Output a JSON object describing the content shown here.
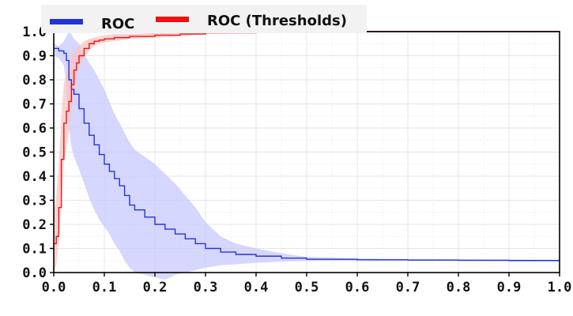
{
  "chart_data": {
    "type": "line",
    "title": "",
    "xlabel": "",
    "ylabel": "",
    "xlim": [
      0.0,
      1.0
    ],
    "ylim": [
      0.0,
      1.0
    ],
    "grid": true,
    "legend_position": "top-left",
    "x_tick_labels": [
      "0.0",
      "0.1",
      "0.2",
      "0.3",
      "0.4",
      "0.5",
      "0.6",
      "0.7",
      "0.8",
      "0.9",
      "1.0"
    ],
    "y_tick_labels": [
      "0.0",
      "0.1",
      "0.2",
      "0.3",
      "0.4",
      "0.5",
      "0.6",
      "0.7",
      "0.8",
      "0.9",
      "1.0"
    ],
    "series": [
      {
        "name": "ROC",
        "color": "#2233dd",
        "band_color": "#c8caff",
        "x": [
          0.0,
          0.01,
          0.02,
          0.025,
          0.03,
          0.035,
          0.04,
          0.05,
          0.06,
          0.07,
          0.08,
          0.09,
          0.1,
          0.11,
          0.12,
          0.13,
          0.14,
          0.15,
          0.16,
          0.18,
          0.2,
          0.22,
          0.24,
          0.26,
          0.28,
          0.3,
          0.33,
          0.36,
          0.4,
          0.45,
          0.5,
          0.6,
          0.7,
          0.8,
          0.9,
          1.0
        ],
        "y": [
          0.93,
          0.92,
          0.91,
          0.88,
          0.8,
          0.76,
          0.74,
          0.68,
          0.62,
          0.57,
          0.53,
          0.49,
          0.45,
          0.42,
          0.39,
          0.36,
          0.32,
          0.28,
          0.26,
          0.23,
          0.2,
          0.18,
          0.16,
          0.14,
          0.12,
          0.1,
          0.085,
          0.075,
          0.068,
          0.06,
          0.055,
          0.053,
          0.052,
          0.051,
          0.05,
          0.05
        ],
        "upper": [
          0.95,
          0.94,
          0.96,
          0.98,
          1.0,
          0.99,
          0.97,
          0.95,
          0.91,
          0.87,
          0.84,
          0.8,
          0.76,
          0.71,
          0.66,
          0.62,
          0.58,
          0.54,
          0.51,
          0.48,
          0.45,
          0.41,
          0.37,
          0.32,
          0.27,
          0.21,
          0.15,
          0.12,
          0.1,
          0.08,
          0.065,
          0.058,
          0.056,
          0.055,
          0.054,
          0.053
        ],
        "lower": [
          0.9,
          0.89,
          0.86,
          0.78,
          0.6,
          0.52,
          0.48,
          0.43,
          0.37,
          0.31,
          0.26,
          0.22,
          0.19,
          0.16,
          0.12,
          0.09,
          0.05,
          0.02,
          0.0,
          -0.01,
          -0.02,
          -0.03,
          -0.01,
          0.0,
          0.01,
          0.02,
          0.03,
          0.035,
          0.04,
          0.045,
          0.048,
          0.048,
          0.048,
          0.047,
          0.046,
          0.046
        ]
      },
      {
        "name": "ROC (Thresholds)",
        "color": "#ee1111",
        "band_color": "#f8c4c4",
        "x": [
          0.0,
          0.005,
          0.01,
          0.015,
          0.02,
          0.025,
          0.03,
          0.035,
          0.04,
          0.045,
          0.05,
          0.06,
          0.07,
          0.08,
          0.09,
          0.1,
          0.12,
          0.15,
          0.2,
          0.25,
          0.3,
          0.4,
          0.5,
          0.6,
          0.8,
          1.0
        ],
        "y": [
          0.12,
          0.15,
          0.27,
          0.47,
          0.62,
          0.67,
          0.71,
          0.78,
          0.84,
          0.87,
          0.9,
          0.93,
          0.95,
          0.96,
          0.965,
          0.97,
          0.975,
          0.98,
          0.985,
          0.99,
          0.995,
          0.998,
          0.999,
          1.0,
          1.0,
          1.0
        ],
        "upper": [
          0.25,
          0.32,
          0.45,
          0.65,
          0.78,
          0.83,
          0.86,
          0.9,
          0.92,
          0.93,
          0.94,
          0.96,
          0.97,
          0.975,
          0.98,
          0.985,
          0.99,
          0.99,
          0.995,
          0.998,
          1.0,
          1.0,
          1.0,
          1.0,
          1.0,
          1.0
        ],
        "lower": [
          0.0,
          0.03,
          0.12,
          0.28,
          0.45,
          0.52,
          0.58,
          0.67,
          0.74,
          0.8,
          0.85,
          0.89,
          0.92,
          0.94,
          0.95,
          0.955,
          0.96,
          0.97,
          0.975,
          0.98,
          0.99,
          0.996,
          0.998,
          1.0,
          1.0,
          1.0
        ]
      }
    ]
  }
}
